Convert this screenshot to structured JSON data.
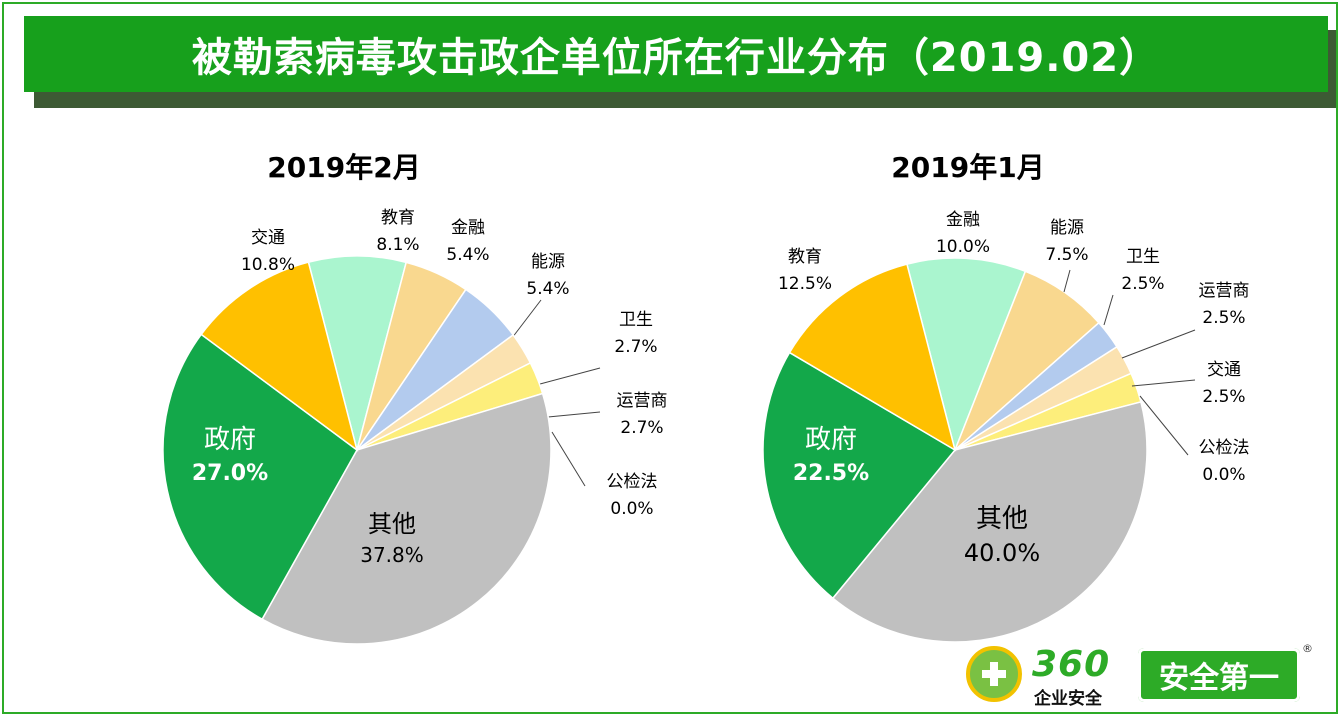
{
  "header": {
    "title": "被勒索病毒攻击政企单位所在行业分布（2019.02）"
  },
  "chart_data": [
    {
      "type": "pie",
      "title": "2019年2月",
      "slices": [
        {
          "label": "教育",
          "value": 8.1,
          "value_text": "8.1%",
          "color": "#aaf5cf"
        },
        {
          "label": "金融",
          "value": 5.4,
          "value_text": "5.4%",
          "color": "#f9d88f"
        },
        {
          "label": "能源",
          "value": 5.4,
          "value_text": "5.4%",
          "color": "#b3cbee"
        },
        {
          "label": "卫生",
          "value": 2.7,
          "value_text": "2.7%",
          "color": "#fbe2b0"
        },
        {
          "label": "运营商",
          "value": 2.7,
          "value_text": "2.7%",
          "color": "#fdee7b"
        },
        {
          "label": "公检法",
          "value": 0.0,
          "value_text": "0.0%",
          "color": "#fdd25c"
        },
        {
          "label": "其他",
          "value": 37.8,
          "value_text": "37.8%",
          "color": "#c0c0c0"
        },
        {
          "label": "政府",
          "value": 27.0,
          "value_text": "27.0%",
          "color": "#13a84a"
        },
        {
          "label": "交通",
          "value": 10.8,
          "value_text": "10.8%",
          "color": "#ffc000"
        }
      ]
    },
    {
      "type": "pie",
      "title": "2019年1月",
      "slices": [
        {
          "label": "金融",
          "value": 10.0,
          "value_text": "10.0%",
          "color": "#aaf5cf"
        },
        {
          "label": "能源",
          "value": 7.5,
          "value_text": "7.5%",
          "color": "#f9d88f"
        },
        {
          "label": "卫生",
          "value": 2.5,
          "value_text": "2.5%",
          "color": "#b3cbee"
        },
        {
          "label": "运营商",
          "value": 2.5,
          "value_text": "2.5%",
          "color": "#fbe2b0"
        },
        {
          "label": "交通",
          "value": 2.5,
          "value_text": "2.5%",
          "color": "#fdee7b"
        },
        {
          "label": "公检法",
          "value": 0.0,
          "value_text": "0.0%",
          "color": "#fdd25c"
        },
        {
          "label": "其他",
          "value": 40.0,
          "value_text": "40.0%",
          "color": "#c0c0c0"
        },
        {
          "label": "政府",
          "value": 22.5,
          "value_text": "22.5%",
          "color": "#13a84a"
        },
        {
          "label": "教育",
          "value": 12.5,
          "value_text": "12.5%",
          "color": "#ffc000"
        }
      ]
    }
  ],
  "logo": {
    "brand_number": "360",
    "brand_sub": "企业安全",
    "badge": "安全第一",
    "registered": "®"
  }
}
